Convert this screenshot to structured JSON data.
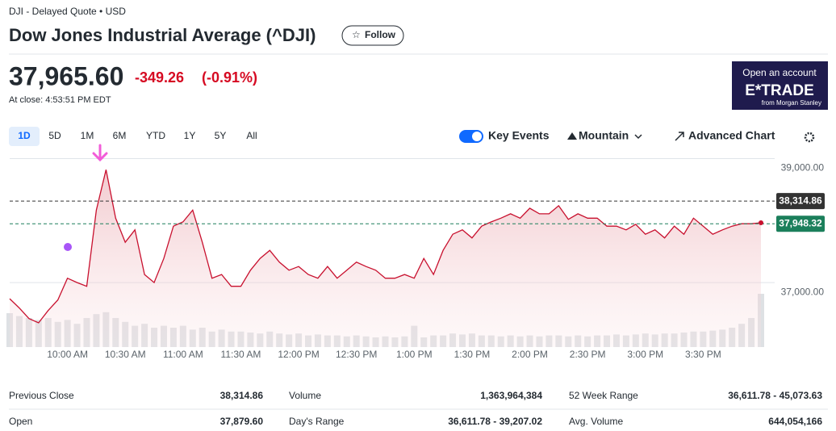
{
  "header": {
    "breadcrumb": "DJI - Delayed Quote • USD",
    "title": "Dow Jones Industrial Average (^DJI)",
    "follow": "Follow"
  },
  "quote": {
    "price": "37,965.60",
    "change": "-349.26",
    "change_pct": "(-0.91%)",
    "time": "At close: 4:53:51 PM EDT"
  },
  "ad": {
    "line1": "Open an account",
    "brand": "E*TRADE",
    "sub": "from Morgan Stanley"
  },
  "ranges": [
    "1D",
    "5D",
    "1M",
    "6M",
    "YTD",
    "1Y",
    "5Y",
    "All"
  ],
  "controls": {
    "key_events": "Key Events",
    "chart_type": "Mountain",
    "advanced": "Advanced Chart"
  },
  "chart": {
    "type": "area",
    "color": "#c8102e",
    "categories": [
      null,
      null,
      null,
      null,
      null,
      null,
      "10:00 AM",
      null,
      null,
      null,
      null,
      null,
      "10:30 AM",
      null,
      null,
      null,
      null,
      null,
      "11:00 AM",
      null,
      null,
      null,
      null,
      null,
      "11:30 AM",
      null,
      null,
      null,
      null,
      null,
      "12:00 PM",
      null,
      null,
      null,
      null,
      null,
      "12:30 PM",
      null,
      null,
      null,
      null,
      null,
      "1:00 PM",
      null,
      null,
      null,
      null,
      null,
      "1:30 PM",
      null,
      null,
      null,
      null,
      null,
      "2:00 PM",
      null,
      null,
      null,
      null,
      null,
      "2:30 PM",
      null,
      null,
      null,
      null,
      null,
      "3:00 PM",
      null,
      null,
      null,
      null,
      null,
      "3:30 PM",
      null,
      null,
      null,
      null,
      null,
      null
    ],
    "values": [
      36740,
      36590,
      36420,
      36350,
      36550,
      36720,
      37070,
      37000,
      36940,
      38170,
      38820,
      38040,
      37650,
      37850,
      37130,
      37000,
      37390,
      37910,
      37980,
      38170,
      37650,
      37070,
      37130,
      36940,
      36940,
      37200,
      37390,
      37520,
      37330,
      37200,
      37260,
      37130,
      37070,
      37260,
      37070,
      37200,
      37330,
      37260,
      37200,
      37070,
      37070,
      37130,
      37070,
      37390,
      37130,
      37520,
      37780,
      37850,
      37720,
      37910,
      37980,
      38040,
      38110,
      38040,
      38200,
      38110,
      38110,
      38240,
      38020,
      38110,
      38040,
      38040,
      37910,
      37910,
      37850,
      37940,
      37780,
      37850,
      37720,
      37910,
      37780,
      38040,
      37910,
      37780,
      37850,
      37910,
      37950,
      37950,
      37965.6
    ],
    "volume": [
      35000000,
      32000000,
      30000000,
      28000000,
      30000000,
      26000000,
      28000000,
      24000000,
      30000000,
      34000000,
      36000000,
      30000000,
      26000000,
      22000000,
      24000000,
      20000000,
      22000000,
      20000000,
      22000000,
      18000000,
      20000000,
      16000000,
      18000000,
      16000000,
      16000000,
      15000000,
      14000000,
      16000000,
      14000000,
      13000000,
      14000000,
      12000000,
      13000000,
      12000000,
      12000000,
      11000000,
      12000000,
      11000000,
      10000000,
      11000000,
      10000000,
      11000000,
      22000000,
      10000000,
      12000000,
      12000000,
      14000000,
      13000000,
      14000000,
      12000000,
      12000000,
      11000000,
      12000000,
      11000000,
      12000000,
      11000000,
      12000000,
      12000000,
      11000000,
      12000000,
      11000000,
      12000000,
      12000000,
      13000000,
      12000000,
      13000000,
      14000000,
      13000000,
      14000000,
      14000000,
      15000000,
      16000000,
      16000000,
      17000000,
      18000000,
      20000000,
      24000000,
      30000000,
      55000000
    ],
    "ylim": [
      35960,
      39150
    ],
    "yticks": [
      {
        "value": 39000,
        "label": "39,000.00"
      },
      {
        "value": 37000,
        "label": "37,000.00"
      }
    ],
    "reference_lines": [
      {
        "value": 38314.86,
        "label": "38,314.86",
        "color": "#333333"
      },
      {
        "value": 37948.32,
        "label": "37,948.32",
        "color": "#1b7f5b"
      }
    ]
  },
  "stats": {
    "rows": [
      [
        [
          "Previous Close",
          "38,314.86"
        ],
        [
          "Volume",
          "1,363,964,384"
        ],
        [
          "52 Week Range",
          "36,611.78 - 45,073.63"
        ]
      ],
      [
        [
          "Open",
          "37,879.60"
        ],
        [
          "Day's Range",
          "36,611.78 - 39,207.02"
        ],
        [
          "Avg. Volume",
          "644,054,166"
        ]
      ]
    ]
  }
}
